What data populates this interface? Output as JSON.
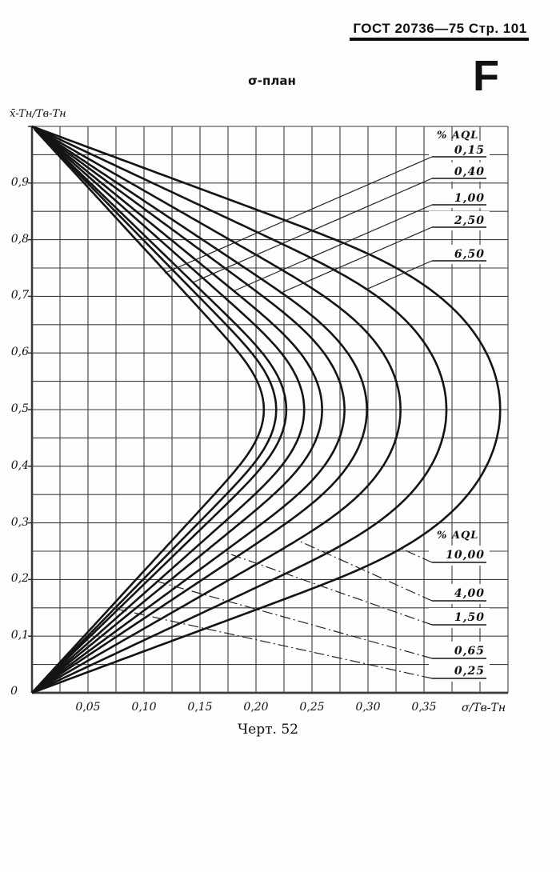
{
  "page": {
    "header": "ГОСТ 20736—75 Стр. 101",
    "corner_mark": "F",
    "title": "σ-план",
    "caption": "Черт. 52"
  },
  "chart_data": {
    "type": "line",
    "title": "σ-план",
    "xlabel": "σ/Tв-Tн",
    "ylabel": "x̄-Tн/Tв-Tн",
    "xlim": [
      0,
      0.425
    ],
    "ylim": [
      0,
      1.0
    ],
    "x_grid_step": 0.025,
    "y_grid_step": 0.05,
    "x_ticks": [
      "0,05",
      "0,10",
      "0,15",
      "0,20",
      "0,25",
      "0,30",
      "0,35"
    ],
    "y_ticks": [
      "0",
      "0,1",
      "0,2",
      "0,3",
      "0,4",
      "0,5",
      "0,6",
      "0,7",
      "0,8",
      "0,9"
    ],
    "curve_description": "Family of acceptance-boundary curves for sigma-plans. Each curve runs from (0,0) up to its widest point (sigma_max, 0.5) and back to (0,1); shape follows the two-sided normal fraction-defective contour calibrated to sigma_max.",
    "series": [
      {
        "aql": "0,15",
        "sigma_max": 0.207
      },
      {
        "aql": "0,25",
        "sigma_max": 0.218
      },
      {
        "aql": "0,40",
        "sigma_max": 0.227
      },
      {
        "aql": "0,65",
        "sigma_max": 0.243
      },
      {
        "aql": "1,00",
        "sigma_max": 0.259
      },
      {
        "aql": "1,50",
        "sigma_max": 0.279
      },
      {
        "aql": "2,50",
        "sigma_max": 0.299
      },
      {
        "aql": "4,00",
        "sigma_max": 0.329
      },
      {
        "aql": "6,50",
        "sigma_max": 0.37
      },
      {
        "aql": "10,00",
        "sigma_max": 0.418
      }
    ],
    "legend": {
      "top_header": "% AQL",
      "top_labels": [
        "0,15",
        "0,40",
        "1,00",
        "2,50",
        "6,50"
      ],
      "bottom_header": "% AQL",
      "bottom_labels": [
        "10,00",
        "4,00",
        "1,50",
        "0,65",
        "0,25"
      ]
    }
  }
}
